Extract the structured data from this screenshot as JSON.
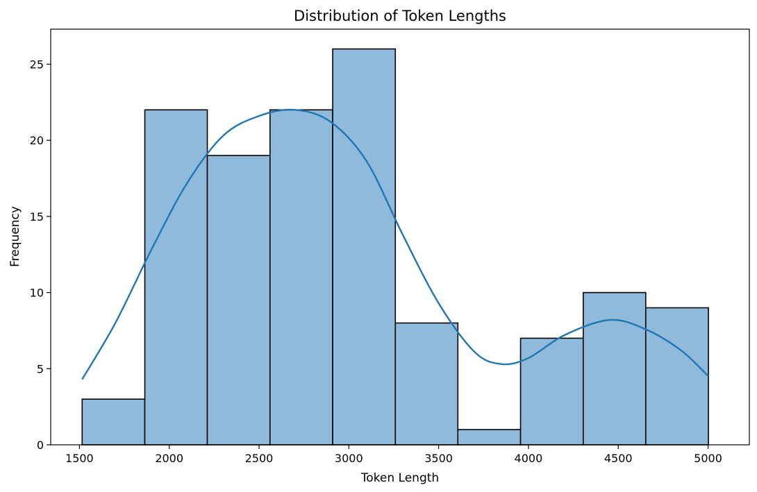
{
  "chart_data": {
    "type": "bar",
    "title": "Distribution of Token Lengths",
    "xlabel": "Token Length",
    "ylabel": "Frequency",
    "xlim": [
      1340,
      5230
    ],
    "ylim": [
      0,
      27.3
    ],
    "xticks": [
      1500,
      2000,
      2500,
      3000,
      3500,
      4000,
      4500,
      5000
    ],
    "yticks": [
      0,
      5,
      10,
      15,
      20,
      25
    ],
    "grid": false,
    "bins": [
      {
        "start": 1515,
        "end": 1864,
        "count": 3
      },
      {
        "start": 1864,
        "end": 2212,
        "count": 22
      },
      {
        "start": 2212,
        "end": 2561,
        "count": 19
      },
      {
        "start": 2561,
        "end": 2910,
        "count": 22
      },
      {
        "start": 2910,
        "end": 3259,
        "count": 26
      },
      {
        "start": 3259,
        "end": 3607,
        "count": 8
      },
      {
        "start": 3607,
        "end": 3956,
        "count": 1
      },
      {
        "start": 3956,
        "end": 4305,
        "count": 7
      },
      {
        "start": 4305,
        "end": 4653,
        "count": 10
      },
      {
        "start": 4653,
        "end": 5002,
        "count": 9
      }
    ],
    "kde_curve": {
      "x": [
        1515,
        1700,
        1900,
        2100,
        2300,
        2500,
        2700,
        2900,
        3100,
        3300,
        3500,
        3700,
        3850,
        4000,
        4200,
        4450,
        4650,
        4850,
        5002
      ],
      "y": [
        4.3,
        8.0,
        12.8,
        17.2,
        20.3,
        21.6,
        22.0,
        21.2,
        18.6,
        13.8,
        9.3,
        6.1,
        5.3,
        5.7,
        7.2,
        8.2,
        7.6,
        6.2,
        4.5
      ]
    }
  }
}
